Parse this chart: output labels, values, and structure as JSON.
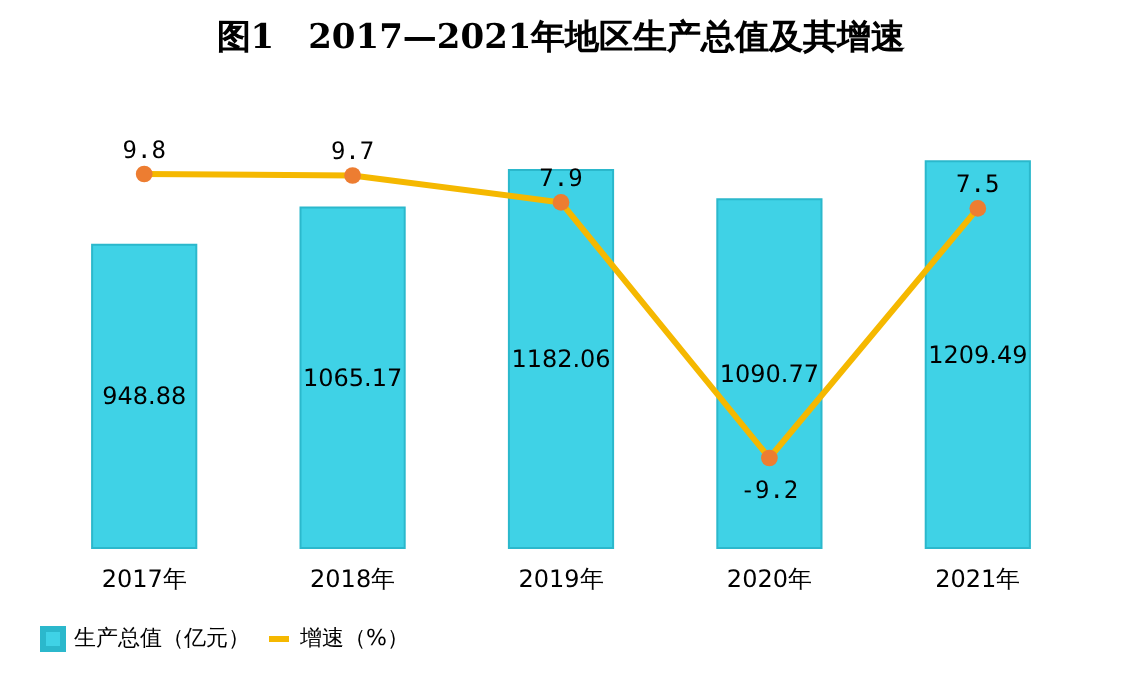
{
  "chart_data": {
    "type": "bar",
    "title": "图1　2017—2021年地区生产总值及其增速",
    "categories": [
      "2017年",
      "2018年",
      "2019年",
      "2020年",
      "2021年"
    ],
    "series": [
      {
        "name": "生产总值（亿元）",
        "color": "#3fd2e6",
        "values": [
          948.88,
          1065.17,
          1182.06,
          1090.77,
          1209.49
        ]
      },
      {
        "name": "增速（%）",
        "type": "line",
        "axis": "y2",
        "color": "#f5b800",
        "colors": [
          "#ed7d31",
          "#ed7d31",
          "#ed7d31",
          "#ed7d31",
          "#ed7d31"
        ],
        "values": [
          9.8,
          9.7,
          7.9,
          -9.2,
          7.5
        ]
      }
    ],
    "data_labels": true,
    "marker": "circle",
    "legend": "bottom",
    "tick_labels": "x",
    "grid": false
  }
}
